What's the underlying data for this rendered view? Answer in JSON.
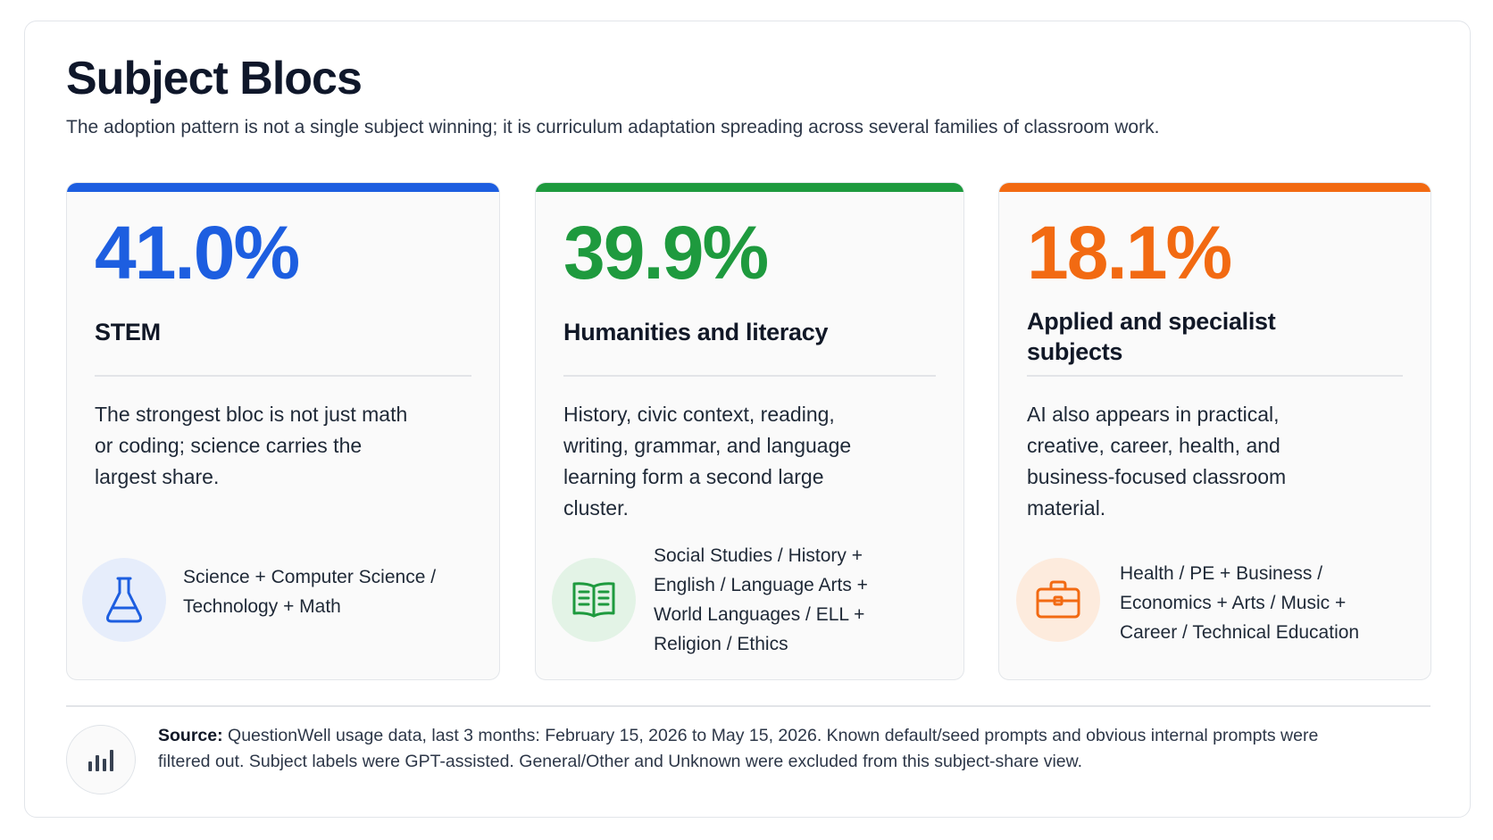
{
  "header": {
    "title": "Subject Blocs",
    "subtitle": "The adoption pattern is not a single subject winning; it is curriculum adaptation spreading across several families of classroom work."
  },
  "cards": [
    {
      "percent": "41.0%",
      "label": "STEM",
      "description": "The strongest bloc is not just math or coding; science carries the largest share.",
      "subjects": "Science + Computer Science / Technology + Math",
      "icon": "flask-icon",
      "color": "#1d5ee0"
    },
    {
      "percent": "39.9%",
      "label": "Humanities and literacy",
      "description": "History, civic context, reading, writing, grammar, and language learning form a second large cluster.",
      "subjects": "Social Studies / History + English / Language Arts + World Languages / ELL + Religion / Ethics",
      "icon": "open-book-icon",
      "color": "#1e9a3e"
    },
    {
      "percent": "18.1%",
      "label": "Applied and specialist subjects",
      "description": "AI also appears in practical, creative, career, health, and business-focused classroom material.",
      "subjects": "Health / PE + Business / Economics + Arts / Music + Career / Technical Education",
      "icon": "briefcase-icon",
      "color": "#f26a12"
    }
  ],
  "footer": {
    "source_label": "Source:",
    "source_text": "QuestionWell usage data, last 3 months: February 15, 2026 to May 15, 2026. Known default/seed prompts and obvious internal prompts were filtered out. Subject labels were GPT-assisted. General/Other and Unknown were excluded from this subject-share view.",
    "icon": "bar-chart-icon"
  }
}
